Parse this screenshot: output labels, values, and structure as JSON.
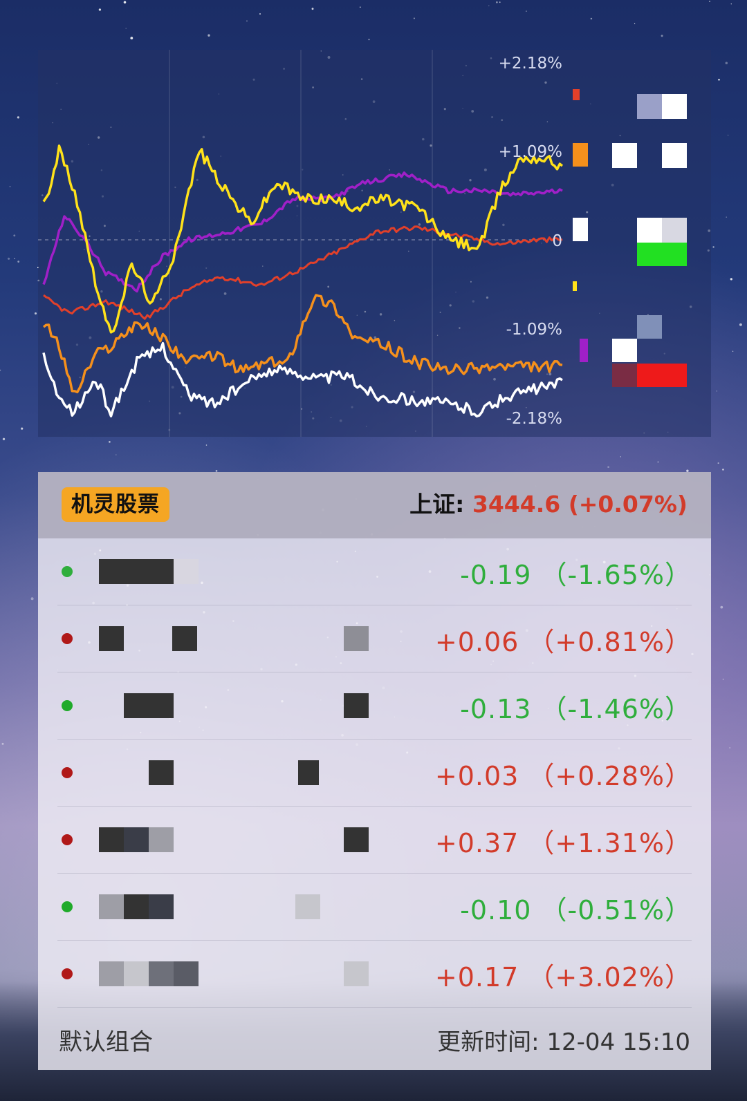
{
  "chart": {
    "axis_labels": [
      "+2.18%",
      "+1.09%",
      "0",
      "-1.09%",
      "-2.18%"
    ],
    "axis_values": [
      2.18,
      1.09,
      0,
      -1.09,
      -2.18
    ],
    "series_colors": {
      "red": "#e2402a",
      "purple": "#a020c8",
      "yellow": "#ffe21a",
      "orange": "#f5901c",
      "white": "#ffffff"
    }
  },
  "widget": {
    "app_name": "机灵股票",
    "index_label": "上证:",
    "index_value": "3444.6 (+0.07%)"
  },
  "rows": [
    {
      "change": "-0.19 （-1.65%）",
      "direction": "down",
      "dot_color": "#2fae3c"
    },
    {
      "change": "+0.06 （+0.81%）",
      "direction": "up",
      "dot_color": "#b01818"
    },
    {
      "change": "-0.13 （-1.46%）",
      "direction": "down",
      "dot_color": "#1faa2a"
    },
    {
      "change": "+0.03 （+0.28%）",
      "direction": "up",
      "dot_color": "#b01818"
    },
    {
      "change": "+0.37 （+1.31%）",
      "direction": "up",
      "dot_color": "#b01818"
    },
    {
      "change": "-0.10 （-0.51%）",
      "direction": "down",
      "dot_color": "#1faa2a"
    },
    {
      "change": "+0.17 （+3.02%）",
      "direction": "up",
      "dot_color": "#b01818"
    }
  ],
  "footer": {
    "portfolio": "默认组合",
    "update_time": "更新时间: 12-04 15:10"
  }
}
